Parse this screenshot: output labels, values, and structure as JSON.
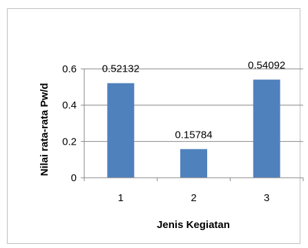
{
  "chart_data": {
    "type": "bar",
    "title": "",
    "categories": [
      "1",
      "2",
      "3"
    ],
    "values": [
      0.52132,
      0.15784,
      0.54092
    ],
    "data_labels": [
      "0.52132",
      "0.15784",
      "0.54092"
    ],
    "xlabel": "Jenis Kegiatan",
    "ylabel": "Nilai rata-rata Pw/d",
    "ylim": [
      0,
      0.6
    ],
    "yticks": [
      "0",
      "0.2",
      "0.4",
      "0.6"
    ],
    "ytick_values": [
      0,
      0.2,
      0.4,
      0.6
    ],
    "grid": true,
    "legend": "none",
    "bar_color": "#4f81bd",
    "grid_color": "#868686",
    "axis_color": "#868686"
  }
}
